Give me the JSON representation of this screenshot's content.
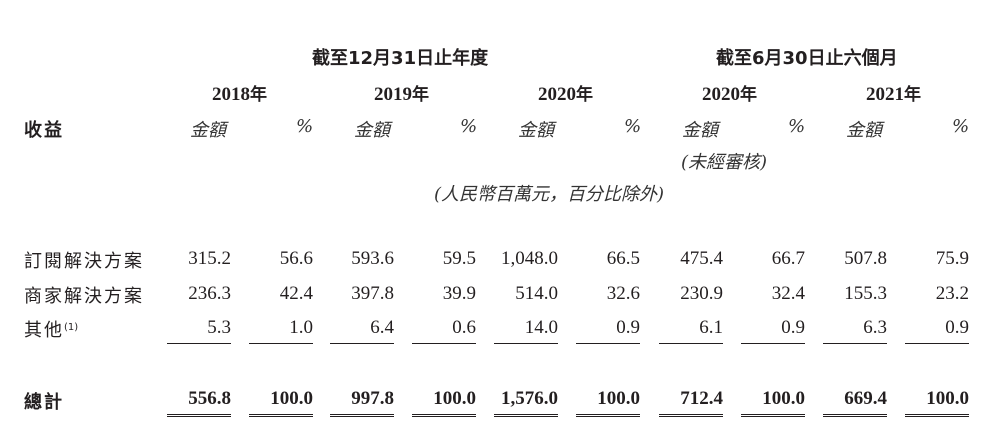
{
  "header": {
    "period_annual": "截至12月31日止年度",
    "period_half": "截至6月30日止六個月",
    "years": [
      {
        "num": "2018",
        "suffix": "年"
      },
      {
        "num": "2019",
        "suffix": "年"
      },
      {
        "num": "2020",
        "suffix": "年"
      },
      {
        "num": "2020",
        "suffix": "年"
      },
      {
        "num": "2021",
        "suffix": "年"
      }
    ],
    "row_label": "收益",
    "col_amount": "金額",
    "col_pct": "%",
    "unaudited": "(未經審核)",
    "unit_note": "(人民幣百萬元，百分比除外)"
  },
  "rows": [
    {
      "label": "訂閱解決方案",
      "footnote": "",
      "values": [
        "315.2",
        "56.6",
        "593.6",
        "59.5",
        "1,048.0",
        "66.5",
        "475.4",
        "66.7",
        "507.8",
        "75.9"
      ]
    },
    {
      "label": "商家解決方案",
      "footnote": "",
      "values": [
        "236.3",
        "42.4",
        "397.8",
        "39.9",
        "514.0",
        "32.6",
        "230.9",
        "32.4",
        "155.3",
        "23.2"
      ]
    },
    {
      "label": "其他",
      "footnote": "(1)",
      "values": [
        "5.3",
        "1.0",
        "6.4",
        "0.6",
        "14.0",
        "0.9",
        "6.1",
        "0.9",
        "6.3",
        "0.9"
      ]
    }
  ],
  "total": {
    "label": "總計",
    "values": [
      "556.8",
      "100.0",
      "997.8",
      "100.0",
      "1,576.0",
      "100.0",
      "712.4",
      "100.0",
      "669.4",
      "100.0"
    ]
  }
}
